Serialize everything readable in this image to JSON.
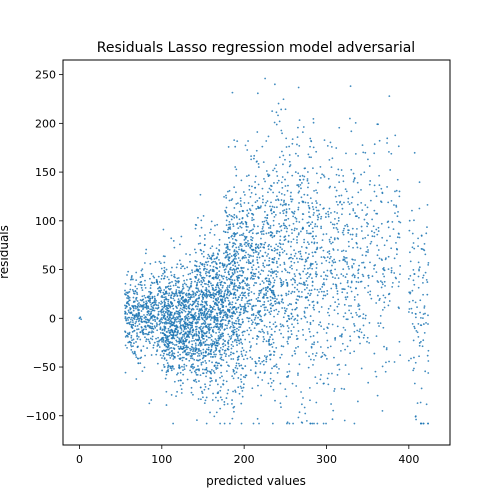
{
  "chart_data": {
    "type": "scatter",
    "title": "Residuals Lasso regression model adversarial",
    "xlabel": "predicted values",
    "ylabel": "residuals",
    "xlim": [
      -20,
      450
    ],
    "ylim": [
      -130,
      265
    ],
    "xticks": [
      0,
      100,
      200,
      300,
      400
    ],
    "yticks": [
      -100,
      -50,
      0,
      50,
      100,
      150,
      200,
      250
    ],
    "grid": false,
    "legend": "none",
    "marker_color": "#1f77b4",
    "clusters": [
      {
        "x_range": [
          55,
          100
        ],
        "y_center": 5,
        "y_spread": 22,
        "count": 500
      },
      {
        "x_range": [
          100,
          140
        ],
        "y_center": -5,
        "y_spread": 28,
        "count": 800
      },
      {
        "x_range": [
          140,
          175
        ],
        "y_center": 5,
        "y_spread": 38,
        "count": 800
      },
      {
        "x_range": [
          175,
          200
        ],
        "y_center": 25,
        "y_spread": 55,
        "count": 550
      },
      {
        "x_range": [
          200,
          240
        ],
        "y_center": 45,
        "y_spread": 60,
        "count": 600
      },
      {
        "x_range": [
          240,
          290
        ],
        "y_center": 55,
        "y_spread": 70,
        "count": 550
      },
      {
        "x_range": [
          290,
          340
        ],
        "y_center": 45,
        "y_spread": 65,
        "count": 350
      },
      {
        "x_range": [
          340,
          390
        ],
        "y_center": 60,
        "y_spread": 60,
        "count": 220
      },
      {
        "x_range": [
          400,
          425
        ],
        "y_center": 10,
        "y_spread": 60,
        "count": 120
      }
    ],
    "isolated_points": [
      [
        0,
        0
      ],
      [
        1,
        1
      ],
      [
        2,
        -1
      ]
    ]
  }
}
